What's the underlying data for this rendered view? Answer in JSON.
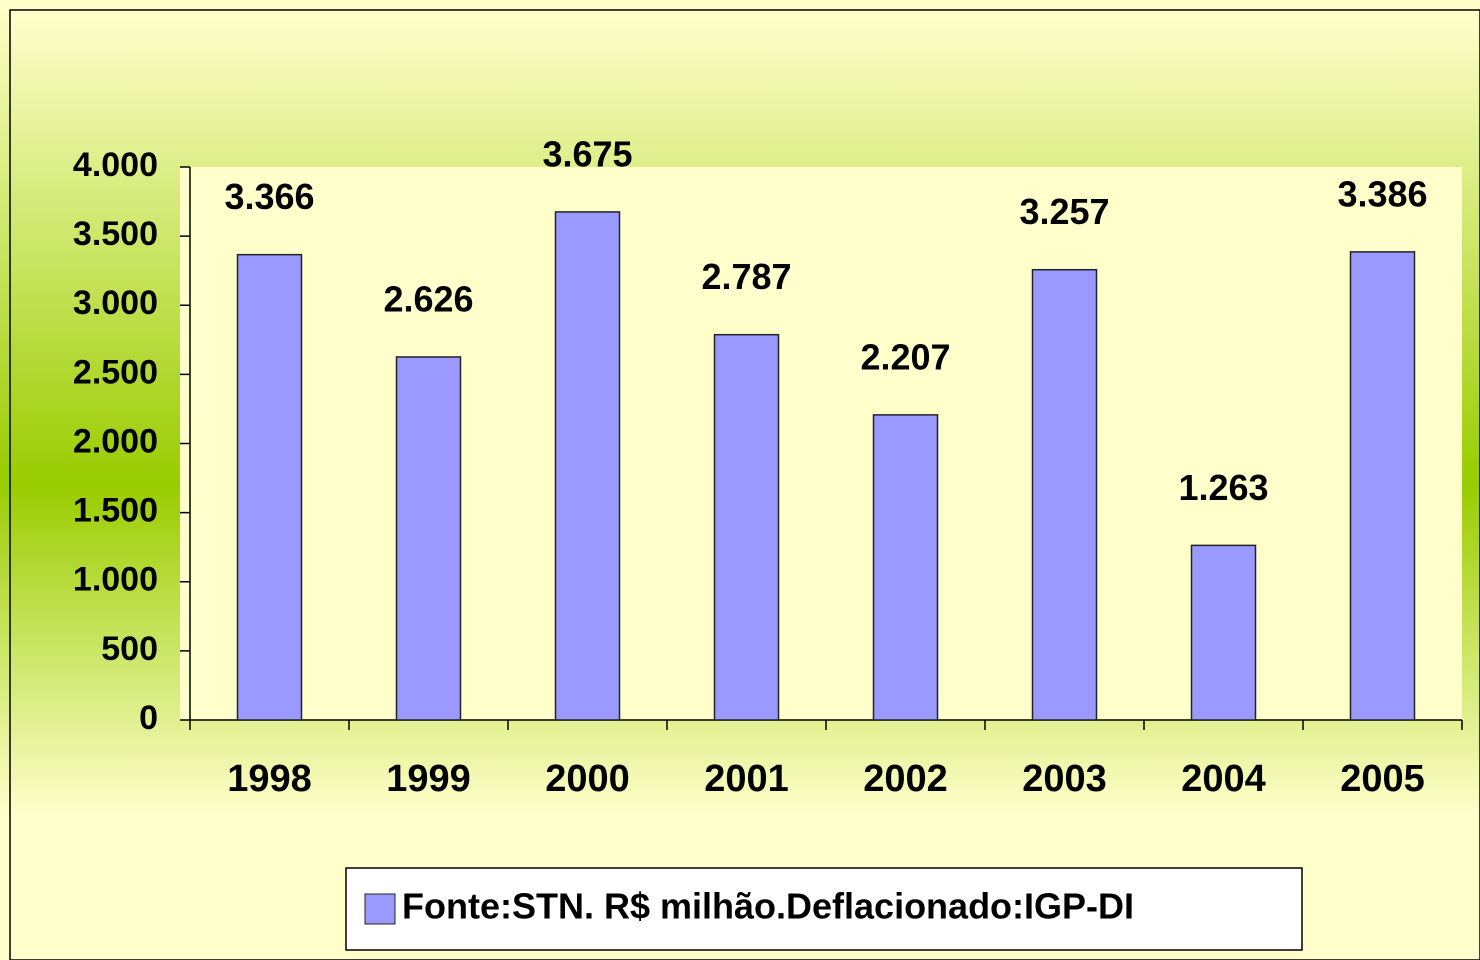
{
  "chart_data": {
    "type": "bar",
    "categories": [
      "1998",
      "1999",
      "2000",
      "2001",
      "2002",
      "2003",
      "2004",
      "2005"
    ],
    "series": [
      {
        "name": "Fonte:STN. R$ milhão.Deflacionado:IGP-DI",
        "color": "#9999ff",
        "values": [
          3366,
          2626,
          3675,
          2787,
          2207,
          3257,
          1263,
          3386
        ],
        "value_labels": [
          "3.366",
          "2.626",
          "3.675",
          "2.787",
          "2.207",
          "3.257",
          "1.263",
          "3.386"
        ]
      }
    ],
    "ylim": [
      0,
      4000
    ],
    "yticks": [
      0,
      500,
      {
        "value": 1000,
        "label": "1.000"
      },
      {
        "value": 1500,
        "label": "1.500"
      },
      {
        "value": 2000,
        "label": "2.000"
      },
      {
        "value": 2500,
        "label": "2.500"
      },
      {
        "value": 3000,
        "label": "3.000"
      },
      {
        "value": 3500,
        "label": "3.500"
      },
      {
        "value": 4000,
        "label": "4.000"
      }
    ],
    "legend": "bottom"
  }
}
